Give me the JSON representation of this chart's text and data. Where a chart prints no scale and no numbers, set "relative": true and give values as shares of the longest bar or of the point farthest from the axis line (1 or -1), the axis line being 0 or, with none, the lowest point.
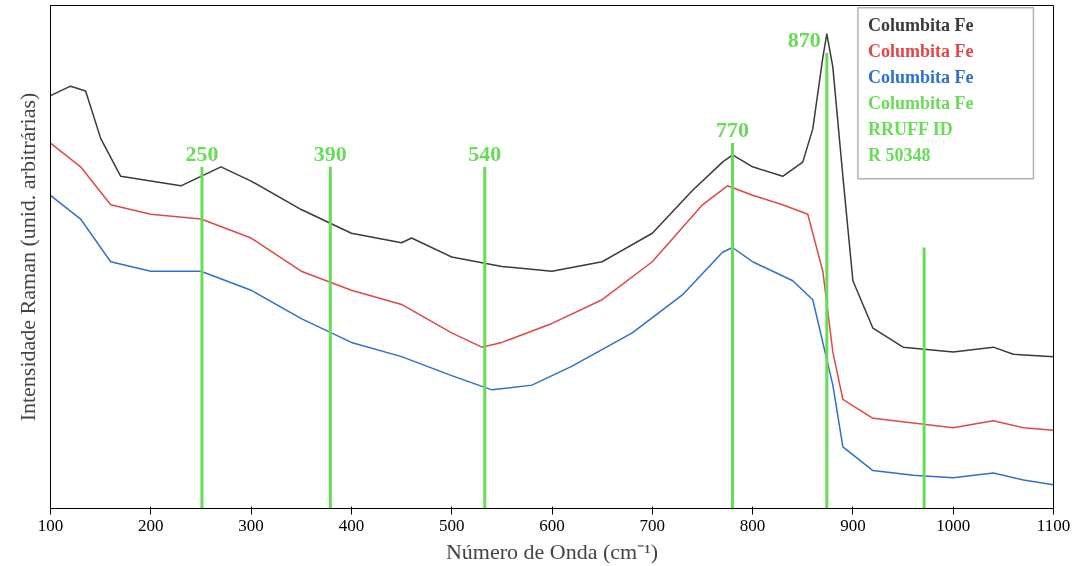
{
  "chart_data": {
    "type": "line",
    "relative": true,
    "xlabel": "Número de Onda (cm⁻¹)",
    "ylabel": "Intensidade Raman (unid. arbitrárias)",
    "xlim": [
      100,
      1100
    ],
    "xticks": [
      100,
      200,
      300,
      400,
      500,
      600,
      700,
      800,
      900,
      1000,
      1100
    ],
    "tick_labels": "x",
    "grid": false,
    "legend": "top right",
    "x": [
      100,
      120,
      135,
      150,
      170,
      200,
      230,
      250,
      270,
      300,
      350,
      400,
      450,
      460,
      500,
      550,
      600,
      650,
      700,
      740,
      770,
      780,
      800,
      830,
      850,
      860,
      870,
      874,
      880,
      890,
      900,
      920,
      950,
      1000,
      1040,
      1060,
      1100
    ],
    "series": [
      {
        "name": "Columbita Fe",
        "color": "#3a3a3a",
        "values": [
          0.87,
          0.89,
          0.88,
          0.78,
          0.7,
          0.69,
          0.68,
          0.7,
          0.72,
          0.69,
          0.63,
          0.58,
          0.56,
          0.57,
          0.53,
          0.51,
          0.5,
          0.52,
          0.58,
          0.67,
          0.73,
          0.745,
          0.72,
          0.7,
          0.73,
          0.8,
          0.95,
          1.0,
          0.93,
          0.7,
          0.48,
          0.38,
          0.34,
          0.33,
          0.34,
          0.325,
          0.32
        ]
      },
      {
        "name": "Columbita Fe",
        "color": "#e04848",
        "x": [
          100,
          130,
          160,
          200,
          250,
          300,
          350,
          400,
          450,
          500,
          530,
          550,
          600,
          650,
          700,
          750,
          775,
          800,
          830,
          855,
          870,
          880,
          890,
          920,
          960,
          1000,
          1040,
          1070,
          1100
        ],
        "values": [
          0.77,
          0.72,
          0.64,
          0.62,
          0.61,
          0.57,
          0.5,
          0.46,
          0.43,
          0.37,
          0.34,
          0.35,
          0.39,
          0.44,
          0.52,
          0.64,
          0.68,
          0.66,
          0.64,
          0.62,
          0.5,
          0.33,
          0.23,
          0.19,
          0.18,
          0.17,
          0.185,
          0.17,
          0.165
        ]
      },
      {
        "name": "Columbita Fe",
        "color": "#2f6fcf",
        "x": [
          100,
          130,
          160,
          200,
          250,
          300,
          350,
          400,
          450,
          500,
          540,
          580,
          620,
          680,
          730,
          770,
          780,
          800,
          840,
          860,
          880,
          890,
          920,
          960,
          1000,
          1040,
          1070,
          1100
        ],
        "values": [
          0.66,
          0.61,
          0.52,
          0.5,
          0.5,
          0.46,
          0.4,
          0.35,
          0.32,
          0.28,
          0.25,
          0.26,
          0.3,
          0.37,
          0.45,
          0.54,
          0.55,
          0.52,
          0.48,
          0.44,
          0.26,
          0.13,
          0.08,
          0.07,
          0.065,
          0.075,
          0.06,
          0.05
        ]
      },
      {
        "name": "Columbita Fe",
        "type": "bar",
        "color": "#66dd55",
        "x": [
          251,
          379,
          533,
          780,
          874,
          971
        ],
        "values": [
          0.72,
          0.72,
          0.72,
          0.77,
          0.96,
          0.55
        ]
      }
    ],
    "annotations": [
      "RRUFF ID\n R 50348",
      {
        "text": "250",
        "x": 251,
        "y": 0.72
      },
      {
        "text": "390",
        "x": 379,
        "y": 0.72
      },
      {
        "text": "540",
        "x": 533,
        "y": 0.72
      },
      {
        "text": "770",
        "x": 780,
        "y": 0.77
      },
      {
        "text": "870",
        "x": 874,
        "y": 0.96
      }
    ]
  }
}
